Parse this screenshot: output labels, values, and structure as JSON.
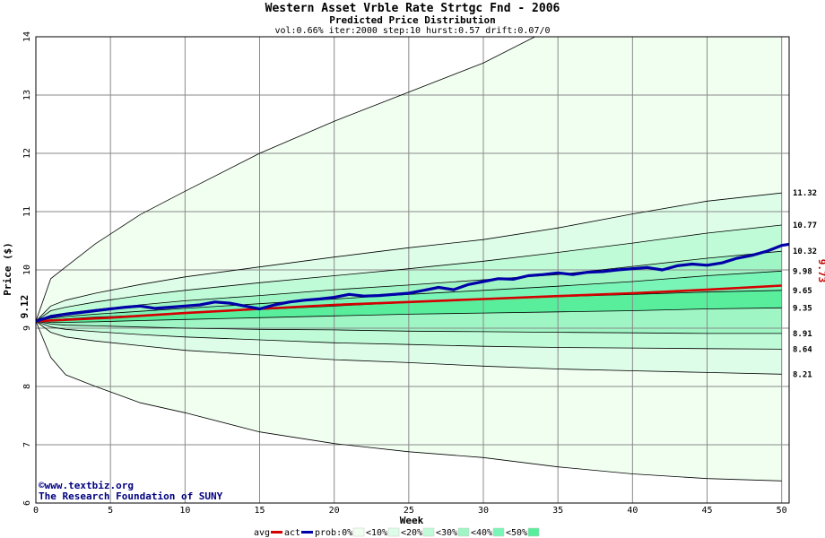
{
  "chart_data": {
    "type": "line",
    "title": "Western Asset Vrble Rate Strtgc Fnd - 2006",
    "subtitle": "Predicted Price Distribution",
    "params": "vol:0.66% iter:2000 step:10 hurst:0.57 drift:0.07/0",
    "xlabel": "Week",
    "ylabel": "Price ($)",
    "xlim": [
      0,
      50.5
    ],
    "ylim": [
      6,
      14
    ],
    "x_ticks": [
      "0",
      "5",
      "10",
      "15",
      "20",
      "25",
      "30",
      "35",
      "40",
      "45",
      "50"
    ],
    "y_ticks": [
      "6",
      "7",
      "8",
      "9",
      "10",
      "11",
      "12",
      "13",
      "14"
    ],
    "grid": true,
    "start_label": "9.12",
    "end_label": "9.73",
    "credit": [
      "©www.textbiz.org",
      "The Research Foundation of SUNY"
    ],
    "bands_weeks": [
      0,
      1,
      2,
      4,
      7,
      10,
      15,
      20,
      25,
      30,
      35,
      40,
      45,
      50
    ],
    "bands": [
      {
        "name": "outer_upper",
        "values": [
          9.12,
          9.85,
          10.05,
          10.45,
          10.95,
          11.35,
          12.0,
          12.55,
          13.05,
          13.55,
          14.2,
          14.5,
          14.7,
          14.9
        ]
      },
      {
        "name": "10_upper",
        "values": [
          9.12,
          9.38,
          9.48,
          9.6,
          9.75,
          9.88,
          10.05,
          10.22,
          10.38,
          10.52,
          10.72,
          10.96,
          11.18,
          11.32
        ]
      },
      {
        "name": "20_upper",
        "values": [
          9.12,
          9.3,
          9.36,
          9.45,
          9.56,
          9.65,
          9.78,
          9.9,
          10.02,
          10.15,
          10.3,
          10.46,
          10.63,
          10.77
        ]
      },
      {
        "name": "30_upper",
        "values": [
          9.12,
          9.22,
          9.26,
          9.32,
          9.4,
          9.47,
          9.56,
          9.66,
          9.74,
          9.83,
          9.92,
          10.06,
          10.2,
          10.32
        ]
      },
      {
        "name": "40_upper",
        "values": [
          9.12,
          9.17,
          9.2,
          9.24,
          9.29,
          9.34,
          9.42,
          9.5,
          9.58,
          9.65,
          9.72,
          9.8,
          9.9,
          9.98
        ]
      },
      {
        "name": "50_upper",
        "values": [
          9.12,
          9.14,
          9.16,
          9.19,
          9.22,
          9.26,
          9.32,
          9.38,
          9.44,
          9.49,
          9.54,
          9.58,
          9.62,
          9.65
        ]
      },
      {
        "name": "50_lower",
        "values": [
          9.12,
          9.1,
          9.1,
          9.11,
          9.13,
          9.15,
          9.18,
          9.21,
          9.24,
          9.26,
          9.28,
          9.3,
          9.33,
          9.35
        ]
      },
      {
        "name": "40_lower",
        "values": [
          9.12,
          9.07,
          9.05,
          9.04,
          9.02,
          9.0,
          8.98,
          8.97,
          8.95,
          8.94,
          8.93,
          8.92,
          8.91,
          8.91
        ]
      },
      {
        "name": "30_lower",
        "values": [
          9.12,
          9.02,
          8.98,
          8.94,
          8.89,
          8.85,
          8.8,
          8.75,
          8.72,
          8.69,
          8.67,
          8.66,
          8.65,
          8.64
        ]
      },
      {
        "name": "20_lower",
        "values": [
          9.12,
          8.93,
          8.85,
          8.78,
          8.7,
          8.62,
          8.54,
          8.46,
          8.41,
          8.35,
          8.3,
          8.27,
          8.24,
          8.21
        ]
      },
      {
        "name": "outer_lower",
        "values": [
          9.12,
          8.5,
          8.2,
          8.0,
          7.72,
          7.55,
          7.22,
          7.02,
          6.88,
          6.78,
          6.62,
          6.5,
          6.42,
          6.38
        ]
      }
    ],
    "band_labels": [
      {
        "value": 11.32,
        "text": "11.32"
      },
      {
        "value": 10.77,
        "text": "10.77"
      },
      {
        "value": 10.32,
        "text": "10.32"
      },
      {
        "value": 9.98,
        "text": "9.98"
      },
      {
        "value": 9.65,
        "text": "9.65"
      },
      {
        "value": 9.35,
        "text": "9.35"
      },
      {
        "value": 8.91,
        "text": "8.91"
      },
      {
        "value": 8.64,
        "text": "8.64"
      },
      {
        "value": 8.21,
        "text": "8.21"
      }
    ],
    "series": [
      {
        "name": "avg",
        "color": "#d40000",
        "x": [
          0,
          5,
          10,
          15,
          20,
          25,
          30,
          35,
          40,
          45,
          50
        ],
        "values": [
          9.12,
          9.18,
          9.26,
          9.33,
          9.4,
          9.45,
          9.5,
          9.55,
          9.6,
          9.66,
          9.73
        ]
      },
      {
        "name": "act",
        "color": "#0000a8",
        "x": [
          0,
          1,
          2,
          3,
          4,
          5,
          6,
          7,
          8,
          9,
          10,
          11,
          12,
          13,
          14,
          15,
          16,
          17,
          18,
          19,
          20,
          21,
          22,
          23,
          24,
          25,
          26,
          27,
          28,
          29,
          30,
          31,
          32,
          33,
          34,
          35,
          36,
          37,
          38,
          39,
          40,
          41,
          42,
          43,
          44,
          45,
          46,
          47,
          48,
          49,
          50,
          50.5
        ],
        "values": [
          9.12,
          9.2,
          9.24,
          9.27,
          9.3,
          9.33,
          9.36,
          9.38,
          9.34,
          9.36,
          9.38,
          9.4,
          9.45,
          9.43,
          9.38,
          9.33,
          9.4,
          9.45,
          9.48,
          9.5,
          9.53,
          9.58,
          9.55,
          9.56,
          9.58,
          9.6,
          9.65,
          9.7,
          9.66,
          9.75,
          9.8,
          9.85,
          9.84,
          9.9,
          9.92,
          9.95,
          9.92,
          9.96,
          9.97,
          10.0,
          10.02,
          10.04,
          10.0,
          10.07,
          10.1,
          10.08,
          10.12,
          10.2,
          10.25,
          10.32,
          10.42,
          10.44
        ]
      }
    ],
    "legend": {
      "items": [
        "avg",
        "act",
        "prob:0%",
        "<10%",
        "<20%",
        "<30%",
        "<40%",
        "<50%"
      ],
      "placement": "bottom"
    },
    "colors": {
      "band_outer": "#f0fff0",
      "band_10": "#ddfde8",
      "band_20": "#c0fbd8",
      "band_30": "#9ff5c4",
      "band_40": "#7af5b8",
      "band_50": "#58ee9c",
      "avg": "#d40000",
      "act": "#0000a8",
      "end_label": "#c00000"
    }
  }
}
